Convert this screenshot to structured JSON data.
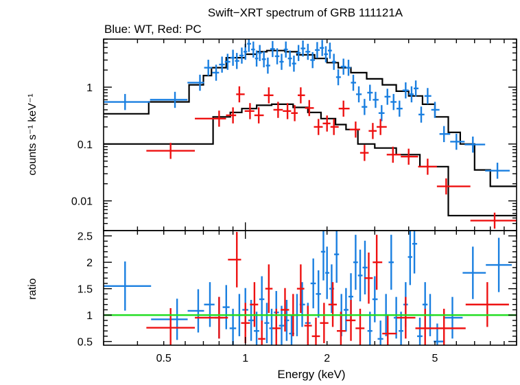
{
  "chart_data": [
    {
      "type": "scatter",
      "panel": "spectrum",
      "title": "Swift−XRT spectrum of GRB 111121A",
      "subtitle": "Blue: WT, Red: PC",
      "xlabel": "",
      "ylabel": "counts s⁻¹ keV⁻¹",
      "xscale": "log",
      "yscale": "log",
      "xlim": [
        0.3,
        10
      ],
      "ylim": [
        0.003,
        7
      ],
      "yticks": [
        {
          "value": 0.01,
          "label": "0.01"
        },
        {
          "value": 0.1,
          "label": "0.1"
        },
        {
          "value": 1,
          "label": "1"
        }
      ],
      "series": [
        {
          "color": "#1a7fe0",
          "kind": "data",
          "points": [
            [
              0.36,
              0.55
            ],
            [
              0.55,
              0.6
            ],
            [
              0.68,
              1.2
            ],
            [
              0.73,
              2.2
            ],
            [
              0.78,
              1.8
            ],
            [
              0.82,
              2.5
            ],
            [
              0.86,
              2.8
            ],
            [
              0.9,
              3.3
            ],
            [
              0.93,
              2.9
            ],
            [
              0.97,
              3.6
            ],
            [
              1.0,
              4.2
            ],
            [
              1.03,
              5.8
            ],
            [
              1.07,
              4.6
            ],
            [
              1.1,
              3.2
            ],
            [
              1.13,
              4.0
            ],
            [
              1.17,
              3.1
            ],
            [
              1.21,
              2.4
            ],
            [
              1.26,
              4.7
            ],
            [
              1.31,
              3.5
            ],
            [
              1.36,
              2.8
            ],
            [
              1.41,
              4.6
            ],
            [
              1.46,
              3.2
            ],
            [
              1.51,
              2.6
            ],
            [
              1.57,
              4.0
            ],
            [
              1.63,
              4.8
            ],
            [
              1.7,
              4.2
            ],
            [
              1.77,
              3.0
            ],
            [
              1.84,
              4.5
            ],
            [
              1.92,
              4.9
            ],
            [
              1.98,
              3.8
            ],
            [
              2.05,
              4.4
            ],
            [
              2.12,
              2.8
            ],
            [
              2.2,
              1.5
            ],
            [
              2.3,
              2.3
            ],
            [
              2.4,
              2.2
            ],
            [
              2.5,
              1.2
            ],
            [
              2.62,
              0.75
            ],
            [
              2.75,
              0.45
            ],
            [
              2.88,
              0.8
            ],
            [
              3.02,
              0.6
            ],
            [
              3.18,
              0.35
            ],
            [
              3.34,
              0.68
            ],
            [
              3.52,
              0.55
            ],
            [
              3.7,
              0.42
            ],
            [
              3.9,
              0.88
            ],
            [
              4.1,
              0.75
            ],
            [
              4.25,
              0.95
            ],
            [
              4.45,
              0.33
            ],
            [
              4.7,
              0.7
            ],
            [
              5.0,
              0.4
            ],
            [
              5.4,
              0.15
            ],
            [
              6.0,
              0.11
            ],
            [
              6.9,
              0.098
            ],
            [
              8.5,
              0.034
            ]
          ]
        },
        {
          "color": "#ee1111",
          "kind": "data",
          "points": [
            [
              0.53,
              0.076
            ],
            [
              0.8,
              0.28
            ],
            [
              0.9,
              0.32
            ],
            [
              0.95,
              0.75
            ],
            [
              1.04,
              0.38
            ],
            [
              1.12,
              0.32
            ],
            [
              1.22,
              0.72
            ],
            [
              1.32,
              0.4
            ],
            [
              1.43,
              0.38
            ],
            [
              1.52,
              0.35
            ],
            [
              1.6,
              0.72
            ],
            [
              1.72,
              0.43
            ],
            [
              1.86,
              0.2
            ],
            [
              2.0,
              0.23
            ],
            [
              2.12,
              0.2
            ],
            [
              2.3,
              0.42
            ],
            [
              2.55,
              0.18
            ],
            [
              2.75,
              0.07
            ],
            [
              2.95,
              0.17
            ],
            [
              3.15,
              0.2
            ],
            [
              3.5,
              0.065
            ],
            [
              4.0,
              0.06
            ],
            [
              4.7,
              0.04
            ],
            [
              5.5,
              0.018
            ],
            [
              8.3,
              0.0045
            ]
          ]
        },
        {
          "color": "#000000",
          "kind": "model",
          "values": [
            [
              0.3,
              0.34
            ],
            [
              0.44,
              0.34
            ],
            [
              0.44,
              0.55
            ],
            [
              0.62,
              0.55
            ],
            [
              0.62,
              1.1
            ],
            [
              0.7,
              1.1
            ],
            [
              0.7,
              1.6
            ],
            [
              0.75,
              1.6
            ],
            [
              0.75,
              2.2
            ],
            [
              0.85,
              2.2
            ],
            [
              0.85,
              3.3
            ],
            [
              1.0,
              3.3
            ],
            [
              1.0,
              3.8
            ],
            [
              1.1,
              3.8
            ],
            [
              1.1,
              4.2
            ],
            [
              1.2,
              4.2
            ],
            [
              1.2,
              4.4
            ],
            [
              1.4,
              4.4
            ],
            [
              1.4,
              4.2
            ],
            [
              1.55,
              4.2
            ],
            [
              1.55,
              3.7
            ],
            [
              1.8,
              3.7
            ],
            [
              1.8,
              3.2
            ],
            [
              2.0,
              3.2
            ],
            [
              2.0,
              2.7
            ],
            [
              2.2,
              2.7
            ],
            [
              2.2,
              2.2
            ],
            [
              2.45,
              2.2
            ],
            [
              2.45,
              1.8
            ],
            [
              2.8,
              1.8
            ],
            [
              2.8,
              1.4
            ],
            [
              3.2,
              1.4
            ],
            [
              3.2,
              1.1
            ],
            [
              3.6,
              1.1
            ],
            [
              3.6,
              0.85
            ],
            [
              4.0,
              0.85
            ],
            [
              4.0,
              0.7
            ],
            [
              4.5,
              0.7
            ],
            [
              4.5,
              0.5
            ],
            [
              5.0,
              0.5
            ],
            [
              5.0,
              0.3
            ],
            [
              5.6,
              0.3
            ],
            [
              5.6,
              0.16
            ],
            [
              6.2,
              0.16
            ],
            [
              6.2,
              0.1
            ],
            [
              7.0,
              0.1
            ],
            [
              7.0,
              0.035
            ],
            [
              8.0,
              0.035
            ],
            [
              8.0,
              0.018
            ],
            [
              10.0,
              0.018
            ]
          ]
        },
        {
          "color": "#000000",
          "kind": "model",
          "values": [
            [
              0.3,
              0.1
            ],
            [
              0.76,
              0.1
            ],
            [
              0.76,
              0.3
            ],
            [
              0.88,
              0.3
            ],
            [
              0.88,
              0.36
            ],
            [
              0.97,
              0.36
            ],
            [
              0.97,
              0.42
            ],
            [
              1.1,
              0.42
            ],
            [
              1.1,
              0.48
            ],
            [
              1.25,
              0.48
            ],
            [
              1.25,
              0.5
            ],
            [
              1.5,
              0.5
            ],
            [
              1.5,
              0.44
            ],
            [
              1.7,
              0.44
            ],
            [
              1.7,
              0.36
            ],
            [
              1.9,
              0.36
            ],
            [
              1.9,
              0.28
            ],
            [
              2.15,
              0.28
            ],
            [
              2.15,
              0.22
            ],
            [
              2.35,
              0.22
            ],
            [
              2.35,
              0.18
            ],
            [
              2.6,
              0.18
            ],
            [
              2.6,
              0.1
            ],
            [
              3.0,
              0.1
            ],
            [
              3.0,
              0.085
            ],
            [
              3.6,
              0.085
            ],
            [
              3.6,
              0.065
            ],
            [
              4.4,
              0.065
            ],
            [
              4.4,
              0.04
            ],
            [
              5.6,
              0.04
            ],
            [
              5.6,
              0.0055
            ],
            [
              10.0,
              0.0055
            ]
          ]
        }
      ]
    },
    {
      "type": "scatter",
      "panel": "ratio",
      "title": "",
      "xlabel": "Energy (keV)",
      "ylabel": "ratio",
      "xscale": "log",
      "yscale": "linear",
      "xlim": [
        0.3,
        10
      ],
      "ylim": [
        0.43,
        2.6
      ],
      "xticks": [
        {
          "value": 0.5,
          "label": "0.5"
        },
        {
          "value": 1,
          "label": "1"
        },
        {
          "value": 2,
          "label": "2"
        },
        {
          "value": 5,
          "label": "5"
        }
      ],
      "yticks": [
        {
          "value": 0.5,
          "label": "0.5"
        },
        {
          "value": 1,
          "label": "1"
        },
        {
          "value": 1.5,
          "label": "1.5"
        },
        {
          "value": 2,
          "label": "2"
        },
        {
          "value": 2.5,
          "label": "2.5"
        }
      ],
      "reference_line": {
        "value": 1,
        "color": "#22dd22"
      },
      "series": [
        {
          "color": "#1a7fe0",
          "kind": "data",
          "points": [
            [
              0.36,
              1.55
            ],
            [
              0.56,
              0.92
            ],
            [
              0.67,
              1.08
            ],
            [
              0.74,
              1.2
            ],
            [
              0.8,
              0.95
            ],
            [
              0.85,
              1.15
            ],
            [
              0.9,
              0.75
            ],
            [
              0.95,
              1.0
            ],
            [
              1.0,
              1.1
            ],
            [
              1.05,
              0.9
            ],
            [
              1.1,
              0.7
            ],
            [
              1.15,
              1.3
            ],
            [
              1.2,
              0.85
            ],
            [
              1.25,
              0.75
            ],
            [
              1.3,
              1.05
            ],
            [
              1.36,
              0.8
            ],
            [
              1.42,
              0.9
            ],
            [
              1.48,
              0.65
            ],
            [
              1.55,
              1.0
            ],
            [
              1.62,
              1.2
            ],
            [
              1.7,
              0.85
            ],
            [
              1.78,
              1.6
            ],
            [
              1.86,
              1.4
            ],
            [
              1.94,
              2.2
            ],
            [
              2.0,
              1.8
            ],
            [
              2.08,
              1.5
            ],
            [
              2.17,
              2.15
            ],
            [
              2.26,
              1.0
            ],
            [
              2.35,
              1.1
            ],
            [
              2.45,
              1.35
            ],
            [
              2.55,
              2.0
            ],
            [
              2.65,
              1.75
            ],
            [
              2.76,
              1.9
            ],
            [
              2.88,
              0.7
            ],
            [
              3.0,
              1.3
            ],
            [
              3.15,
              0.55
            ],
            [
              3.3,
              1.0
            ],
            [
              3.45,
              2.0
            ],
            [
              3.6,
              0.95
            ],
            [
              3.75,
              0.7
            ],
            [
              3.9,
              1.2
            ],
            [
              4.05,
              2.1
            ],
            [
              4.2,
              2.35
            ],
            [
              4.4,
              0.6
            ],
            [
              4.6,
              1.2
            ],
            [
              4.8,
              1.0
            ],
            [
              5.1,
              0.5
            ],
            [
              5.8,
              0.95
            ],
            [
              6.9,
              1.8
            ],
            [
              8.6,
              1.95
            ]
          ]
        },
        {
          "color": "#ee1111",
          "kind": "data",
          "points": [
            [
              0.53,
              0.76
            ],
            [
              0.8,
              0.95
            ],
            [
              0.93,
              2.05
            ],
            [
              1.0,
              0.85
            ],
            [
              1.08,
              1.2
            ],
            [
              1.15,
              0.55
            ],
            [
              1.22,
              1.5
            ],
            [
              1.3,
              0.75
            ],
            [
              1.4,
              1.1
            ],
            [
              1.5,
              1.0
            ],
            [
              1.6,
              1.5
            ],
            [
              1.7,
              0.8
            ],
            [
              1.82,
              0.6
            ],
            [
              1.95,
              0.85
            ],
            [
              2.1,
              1.2
            ],
            [
              2.25,
              0.7
            ],
            [
              2.45,
              0.9
            ],
            [
              2.65,
              0.75
            ],
            [
              2.85,
              1.7
            ],
            [
              3.05,
              2.0
            ],
            [
              3.35,
              0.65
            ],
            [
              3.9,
              0.95
            ],
            [
              4.6,
              0.75
            ],
            [
              5.4,
              0.75
            ],
            [
              7.8,
              1.2
            ]
          ]
        }
      ]
    }
  ]
}
